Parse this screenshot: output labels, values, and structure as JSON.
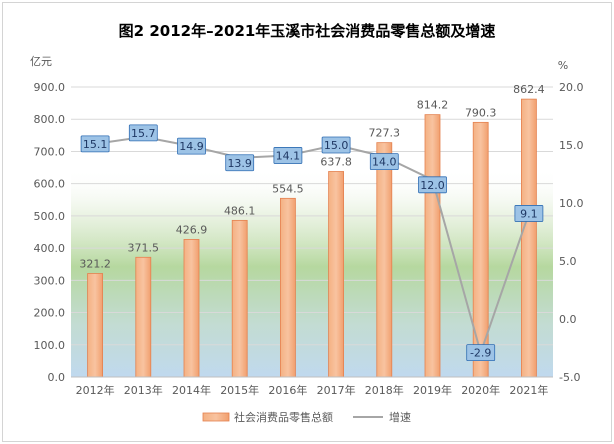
{
  "chart_data": {
    "type": "bar",
    "title": "图2 2012年–2021年玉溪市社会消费品零售总额及增速",
    "categories": [
      "2012年",
      "2013年",
      "2014年",
      "2015年",
      "2016年",
      "2017年",
      "2018年",
      "2019年",
      "2020年",
      "2021年"
    ],
    "series": [
      {
        "name": "社会消费品零售总额",
        "type": "bar",
        "axis": "left",
        "values": [
          321.2,
          371.5,
          426.9,
          486.1,
          554.5,
          637.8,
          727.3,
          814.2,
          790.3,
          862.4
        ]
      },
      {
        "name": "增速",
        "type": "line",
        "axis": "right",
        "values": [
          15.1,
          15.7,
          14.9,
          13.9,
          14.1,
          15.0,
          14.0,
          12.0,
          -2.9,
          9.1
        ]
      }
    ],
    "bar_labels": [
      "321.2",
      "371.5",
      "426.9",
      "486.1",
      "554.5",
      "637.8",
      "727.3",
      "814.2",
      "790.3",
      "862.4"
    ],
    "line_labels": [
      "15.1",
      "15.7",
      "14.9",
      "13.9",
      "14.1",
      "15.0",
      "14.0",
      "12.0",
      "-2.9",
      "9.1"
    ],
    "ylabel": "亿元",
    "ylabel_right": "%",
    "ylim": [
      0,
      900
    ],
    "ylim_right": [
      -5,
      20
    ],
    "yticks": [
      "0.0",
      "100.0",
      "200.0",
      "300.0",
      "400.0",
      "500.0",
      "600.0",
      "700.0",
      "800.0",
      "900.0"
    ],
    "yticks_right": [
      "-5.0",
      "0.0",
      "5.0",
      "10.0",
      "15.0",
      "20.0"
    ],
    "legend_position": "bottom",
    "grid": true,
    "colors": {
      "bar_fill": "#f7a67a",
      "bar_stroke": "#e4814f",
      "line": "#a6a6a6",
      "label_box_fill": "#9dc3e6",
      "label_box_stroke": "#2f6db3",
      "grid": "#d9d9d9",
      "text": "#595959",
      "bg_green": "#a9d18e",
      "bg_blue": "#bdd7ee"
    }
  }
}
